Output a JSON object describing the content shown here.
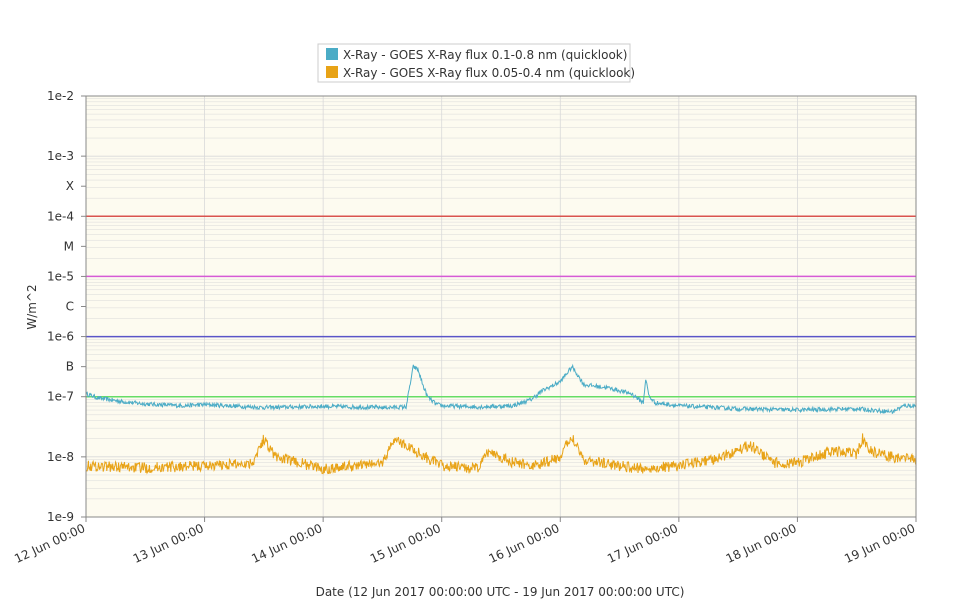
{
  "chart_data": {
    "type": "line",
    "title": "",
    "xlabel": "Date (12 Jun 2017 00:00:00 UTC - 19 Jun 2017 00:00:00 UTC)",
    "ylabel": "W/m^2",
    "yscale": "log",
    "ylim": [
      1e-09,
      0.01
    ],
    "xlim": [
      "2017-06-12 00:00",
      "2017-06-19 00:00"
    ],
    "grid": true,
    "legend_position": "top-center",
    "colors": {
      "plot_bg": "#fdfbf0",
      "grid": "#d9d9d9",
      "frame": "#888888"
    },
    "y_tick_labels": [
      {
        "label": "1e-2",
        "value": 0.01
      },
      {
        "label": "1e-3",
        "value": 0.001
      },
      {
        "label": "X",
        "value": 0.00031623
      },
      {
        "label": "1e-4",
        "value": 0.0001
      },
      {
        "label": "M",
        "value": 3.1623e-05
      },
      {
        "label": "1e-5",
        "value": 1e-05
      },
      {
        "label": "C",
        "value": 3.1623e-06
      },
      {
        "label": "1e-6",
        "value": 1e-06
      },
      {
        "label": "B",
        "value": 3.1623e-07
      },
      {
        "label": "1e-7",
        "value": 1e-07
      },
      {
        "label": "1e-8",
        "value": 1e-08
      },
      {
        "label": "1e-9",
        "value": 1e-09
      }
    ],
    "x_tick_labels": [
      "12 Jun 00:00",
      "13 Jun 00:00",
      "14 Jun 00:00",
      "15 Jun 00:00",
      "16 Jun 00:00",
      "17 Jun 00:00",
      "18 Jun 00:00",
      "19 Jun 00:00"
    ],
    "flare_thresholds": [
      {
        "value": 0.0001,
        "color": "#d9534f"
      },
      {
        "value": 1e-05,
        "color": "#d65ad6"
      },
      {
        "value": 1e-06,
        "color": "#5a55c8"
      },
      {
        "value": 1e-07,
        "color": "#66dd66"
      }
    ],
    "series": [
      {
        "name": "X-Ray - GOES X-Ray flux 0.1-0.8 nm (quicklook)",
        "color": "#4bacc6",
        "x_days": [
          0,
          0.1,
          0.3,
          0.5,
          0.8,
          1.0,
          1.5,
          2.0,
          2.5,
          2.7,
          2.76,
          2.8,
          2.84,
          2.88,
          2.95,
          3.0,
          3.3,
          3.6,
          3.75,
          3.85,
          4.0,
          4.1,
          4.2,
          4.4,
          4.6,
          4.7,
          4.72,
          4.75,
          4.8,
          5.0,
          5.5,
          6.0,
          6.5,
          6.8,
          6.9,
          7.0
        ],
        "y_log10": [
          -6.95,
          -7.02,
          -7.08,
          -7.12,
          -7.15,
          -7.13,
          -7.18,
          -7.16,
          -7.18,
          -7.17,
          -6.5,
          -6.55,
          -6.8,
          -7.0,
          -7.12,
          -7.15,
          -7.17,
          -7.15,
          -7.05,
          -6.9,
          -6.75,
          -6.5,
          -6.8,
          -6.85,
          -6.95,
          -7.1,
          -6.7,
          -7.0,
          -7.1,
          -7.15,
          -7.2,
          -7.22,
          -7.2,
          -7.25,
          -7.15,
          -7.15
        ]
      },
      {
        "name": "X-Ray - GOES X-Ray flux 0.05-0.4 nm (quicklook)",
        "color": "#e8a317",
        "x_days": [
          0,
          0.5,
          1.0,
          1.4,
          1.5,
          1.6,
          2.0,
          2.5,
          2.6,
          3.0,
          3.3,
          3.4,
          3.6,
          3.8,
          4.0,
          4.1,
          4.2,
          4.5,
          4.7,
          5.0,
          5.3,
          5.6,
          5.8,
          6.0,
          6.3,
          6.5,
          6.55,
          6.6,
          6.8,
          7.0
        ],
        "y_log10": [
          -8.15,
          -8.18,
          -8.15,
          -8.1,
          -7.7,
          -8.0,
          -8.2,
          -8.1,
          -7.7,
          -8.15,
          -8.2,
          -7.9,
          -8.1,
          -8.15,
          -8.0,
          -7.65,
          -8.05,
          -8.15,
          -8.2,
          -8.15,
          -8.05,
          -7.8,
          -8.1,
          -8.1,
          -7.9,
          -7.95,
          -7.7,
          -7.9,
          -8.0,
          -8.05
        ]
      }
    ]
  }
}
